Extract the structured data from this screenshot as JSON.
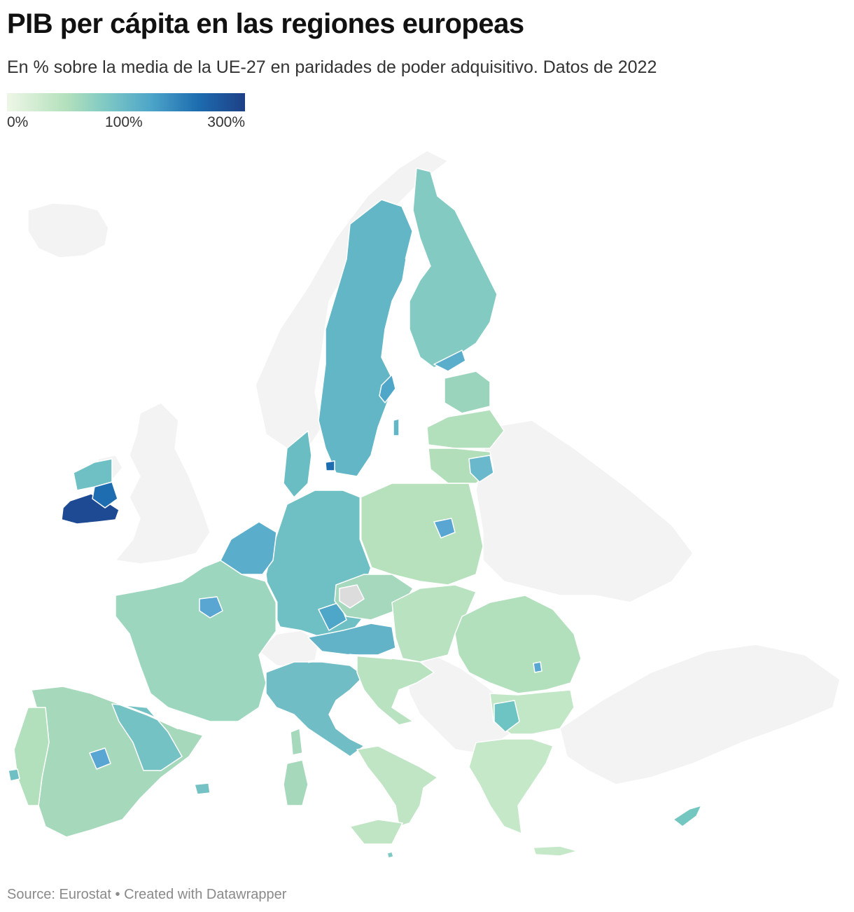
{
  "header": {
    "title": "PIB per cápita en las regiones europeas",
    "subtitle": "En % sobre la media de la UE-27 en paridades de poder adquisitivo. Datos de 2022"
  },
  "legend": {
    "ticks": [
      "0%",
      "100%",
      "300%"
    ],
    "colors": [
      "#eef7e6",
      "#b3e0bc",
      "#83cbc3",
      "#4ea6c9",
      "#1d6db0",
      "#1e3f86"
    ]
  },
  "map": {
    "no_data_color": "#dcdcdc",
    "non_eu_color": "#f3f3f3",
    "regions": [
      {
        "name": "Ireland (south)",
        "color": "#1e4a94"
      },
      {
        "name": "Ireland (east)",
        "color": "#1d6db0"
      },
      {
        "name": "Ireland (north-west)",
        "color": "#6ec0c4"
      },
      {
        "name": "Sweden",
        "color": "#62b6c6"
      },
      {
        "name": "Finland",
        "color": "#82cac2"
      },
      {
        "name": "Estonia",
        "color": "#9bd4bd"
      },
      {
        "name": "Latvia",
        "color": "#b3e0bc"
      },
      {
        "name": "Lithuania",
        "color": "#b2dfba"
      },
      {
        "name": "Vilnius",
        "color": "#6ab8cc"
      },
      {
        "name": "Denmark",
        "color": "#6bbdc4"
      },
      {
        "name": "Poland",
        "color": "#b6e1bc"
      },
      {
        "name": "Warszawa",
        "color": "#5aa6d2"
      },
      {
        "name": "Germany",
        "color": "#6fc0c4"
      },
      {
        "name": "Benelux",
        "color": "#5aaecb"
      },
      {
        "name": "Luxembourg",
        "color": "#1d5ba5"
      },
      {
        "name": "France",
        "color": "#9dd6bf"
      },
      {
        "name": "Île-de-France",
        "color": "#5aa6d2"
      },
      {
        "name": "Spain",
        "color": "#a6d8bb"
      },
      {
        "name": "Madrid",
        "color": "#5aa6d2"
      },
      {
        "name": "Catalonia / Basque",
        "color": "#74c2c4"
      },
      {
        "name": "Portugal",
        "color": "#b3e0bc"
      },
      {
        "name": "Italy north",
        "color": "#70bdc6"
      },
      {
        "name": "Italy south",
        "color": "#c0e5c4"
      },
      {
        "name": "Austria",
        "color": "#62b3c8"
      },
      {
        "name": "Czechia",
        "color": "#a5d8bd"
      },
      {
        "name": "Slovakia / Hungary",
        "color": "#b8e2c0"
      },
      {
        "name": "Romania",
        "color": "#b3e0bc"
      },
      {
        "name": "Bucuresti",
        "color": "#5aa6d2"
      },
      {
        "name": "Bulgaria",
        "color": "#c2e7c6"
      },
      {
        "name": "Sofia",
        "color": "#6ec4c2"
      },
      {
        "name": "Greece",
        "color": "#c5e8c8"
      },
      {
        "name": "Croatia",
        "color": "#b8e2c0"
      },
      {
        "name": "Cyprus",
        "color": "#74c6c0"
      },
      {
        "name": "Malta",
        "color": "#7fc9c2"
      },
      {
        "name": "Praha",
        "color": "#dcdcdc"
      }
    ]
  },
  "footer": {
    "source": "Source: Eurostat • Created with Datawrapper"
  }
}
